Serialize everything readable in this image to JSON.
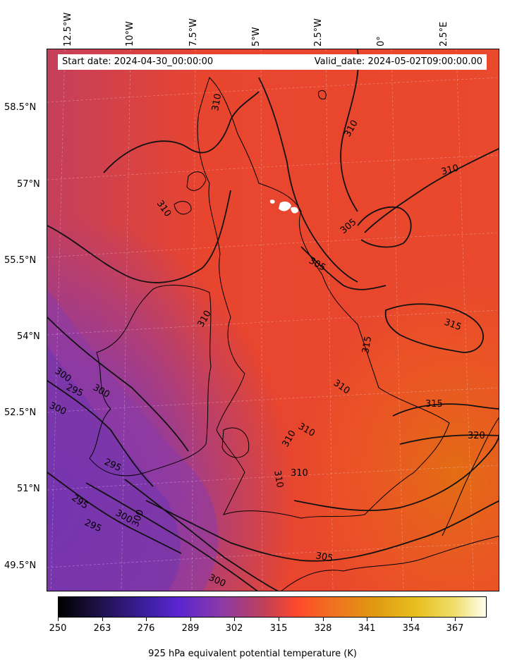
{
  "map": {
    "info": {
      "start": "Start date: 2024-04-30_00:00:00",
      "valid": "Valid_date: 2024-05-02T09:00:00.00"
    },
    "lon_labels": [
      "12.5°W",
      "10°W",
      "7.5°W",
      "5°W",
      "2.5°W",
      "0°",
      "2.5°E"
    ],
    "lat_labels": [
      "58.5°N",
      "57°N",
      "55.5°N",
      "54°N",
      "52.5°N",
      "51°N",
      "49.5°N"
    ],
    "contour_labels": [
      "310",
      "310",
      "310",
      "310",
      "305",
      "305",
      "310",
      "315",
      "315",
      "310",
      "310",
      "310",
      "310",
      "310",
      "315",
      "320",
      "305",
      "300",
      "295",
      "300",
      "295",
      "300",
      "295",
      "295",
      "300",
      "300",
      "300"
    ],
    "colorbar": {
      "ticks": [
        "250",
        "263",
        "276",
        "289",
        "302",
        "315",
        "328",
        "341",
        "354",
        "367"
      ],
      "label": "925 hPa equivalent potential temperature (K)",
      "colormap": "CMRmap-like: black→purple→red→orange→yellow→white"
    },
    "colors": {
      "background_main": "#e8452e",
      "warm_orange": "#e36d14",
      "cool_purple": "#8a3aa8"
    }
  }
}
